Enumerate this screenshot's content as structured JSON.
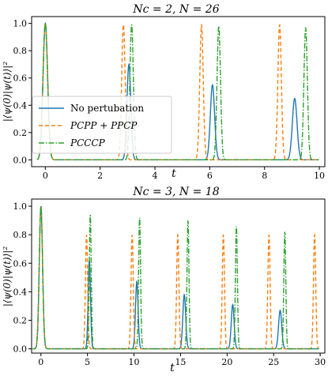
{
  "chart_data": [
    {
      "type": "line",
      "title": "N_c = 2, N = 26",
      "title_display": "Nc = 2, N = 26",
      "xlabel": "t",
      "ylabel": "|⟨ψ(0)|ψ(t)⟩|²",
      "xlim": [
        -0.5,
        10.2
      ],
      "ylim": [
        -0.05,
        1.05
      ],
      "xticks": [
        0,
        2,
        4,
        6,
        8,
        10
      ],
      "yticks": [
        0.0,
        0.2,
        0.4,
        0.6,
        0.8,
        1.0
      ],
      "legend": "center-left",
      "series": [
        {
          "name": "No pertubation",
          "color": "#1f77b4",
          "style": "solid",
          "width_t0": 0.12,
          "peaks": [
            {
              "t": 0.0,
              "h": 1.0,
              "w": 0.12
            },
            {
              "t": 3.05,
              "h": 0.7,
              "w": 0.1
            },
            {
              "t": 6.1,
              "h": 0.55,
              "w": 0.11
            },
            {
              "t": 9.1,
              "h": 0.45,
              "w": 0.12
            }
          ]
        },
        {
          "name": "PCPP + PPCP",
          "color": "#ff7f0e",
          "style": "dashed",
          "peaks": [
            {
              "t": 0.0,
              "h": 1.0,
              "w": 0.12
            },
            {
              "t": 2.85,
              "h": 0.99,
              "w": 0.09
            },
            {
              "t": 5.7,
              "h": 0.99,
              "w": 0.09
            },
            {
              "t": 8.55,
              "h": 0.99,
              "w": 0.09
            }
          ]
        },
        {
          "name": "PCCCP",
          "color": "#2ca02c",
          "style": "dashdot",
          "peaks": [
            {
              "t": 0.0,
              "h": 1.0,
              "w": 0.12
            },
            {
              "t": 3.15,
              "h": 0.99,
              "w": 0.09
            },
            {
              "t": 6.33,
              "h": 0.98,
              "w": 0.09
            },
            {
              "t": 9.5,
              "h": 0.97,
              "w": 0.09
            }
          ]
        }
      ]
    },
    {
      "type": "line",
      "title": "N_c = 3, N = 18",
      "title_display": "Nc = 3, N = 18",
      "xlabel": "t",
      "ylabel": "|⟨ψ(0)|ψ(t)⟩|²",
      "xlim": [
        -1.0,
        30.5
      ],
      "ylim": [
        -0.03,
        1.05
      ],
      "xticks": [
        0,
        5,
        10,
        15,
        20,
        25,
        30
      ],
      "yticks": [
        0.0,
        0.2,
        0.4,
        0.6,
        0.8,
        1.0
      ],
      "series": [
        {
          "name": "No pertubation",
          "color": "#1f77b4",
          "style": "solid",
          "peaks": [
            {
              "t": 0.0,
              "h": 1.0,
              "w": 0.25
            },
            {
              "t": 5.2,
              "h": 0.62,
              "w": 0.18
            },
            {
              "t": 10.3,
              "h": 0.47,
              "w": 0.2
            },
            {
              "t": 15.4,
              "h": 0.38,
              "w": 0.22
            },
            {
              "t": 20.6,
              "h": 0.31,
              "w": 0.22
            },
            {
              "t": 25.7,
              "h": 0.27,
              "w": 0.24
            }
          ]
        },
        {
          "name": "PCPP + PPCP",
          "color": "#ff7f0e",
          "style": "dashed",
          "peaks": [
            {
              "t": 0.0,
              "h": 1.0,
              "w": 0.25
            },
            {
              "t": 4.9,
              "h": 0.8,
              "w": 0.17
            },
            {
              "t": 9.8,
              "h": 0.8,
              "w": 0.17
            },
            {
              "t": 14.7,
              "h": 0.8,
              "w": 0.17
            },
            {
              "t": 19.6,
              "h": 0.8,
              "w": 0.17
            },
            {
              "t": 24.5,
              "h": 0.8,
              "w": 0.17
            },
            {
              "t": 29.4,
              "h": 0.8,
              "w": 0.17
            }
          ]
        },
        {
          "name": "PCCCP",
          "color": "#2ca02c",
          "style": "dashdot",
          "peaks": [
            {
              "t": 0.0,
              "h": 1.0,
              "w": 0.25
            },
            {
              "t": 5.3,
              "h": 0.94,
              "w": 0.15
            },
            {
              "t": 10.6,
              "h": 0.92,
              "w": 0.15
            },
            {
              "t": 15.8,
              "h": 0.9,
              "w": 0.15
            },
            {
              "t": 21.0,
              "h": 0.86,
              "w": 0.15
            },
            {
              "t": 26.2,
              "h": 0.82,
              "w": 0.15
            }
          ]
        }
      ]
    }
  ]
}
